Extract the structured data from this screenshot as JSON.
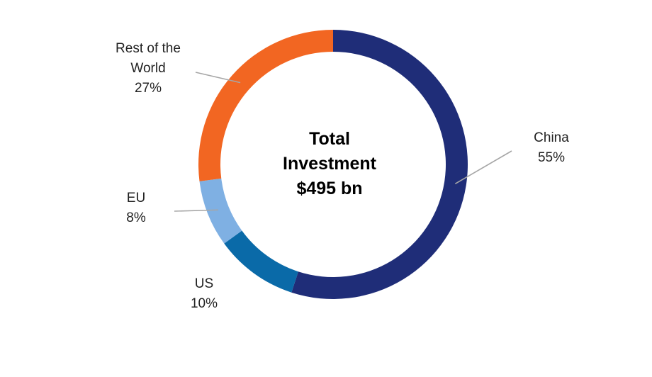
{
  "chart_data": {
    "type": "pie",
    "style": "donut",
    "center_text": [
      "Total",
      "Investment",
      "$495 bn"
    ],
    "slices": [
      {
        "label": [
          "China",
          "55%"
        ],
        "value": 55,
        "color": "#1f2d78"
      },
      {
        "label": [
          "US",
          "10%"
        ],
        "value": 10,
        "color": "#0a6aa8"
      },
      {
        "label": [
          "EU",
          "8%"
        ],
        "value": 8,
        "color": "#7fb0e3"
      },
      {
        "label": [
          "Rest of the",
          "World",
          "27%"
        ],
        "value": 27,
        "color": "#f26622"
      }
    ],
    "start_angle": "12 o'clock",
    "direction": "clockwise",
    "leader_lines": true
  }
}
